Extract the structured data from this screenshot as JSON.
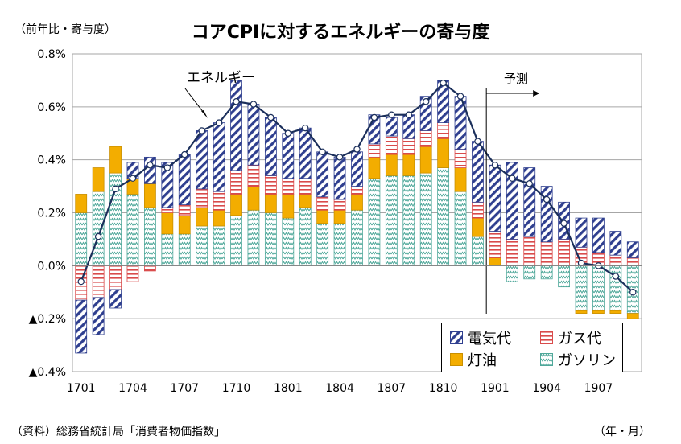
{
  "title": "コアCPIに対するエネルギーの寄与度",
  "unit_label": "（前年比・寄与度）",
  "source": "（資料）総務省統計局「消費者物価指数」",
  "x_unit": "（年・月）",
  "annotations": {
    "energy": "エネルギー",
    "forecast": "予測"
  },
  "legend": [
    {
      "key": "electricity",
      "label": "電気代"
    },
    {
      "key": "gas",
      "label": "ガス代"
    },
    {
      "key": "kerosene",
      "label": "灯油"
    },
    {
      "key": "gasoline",
      "label": "ガソリン"
    }
  ],
  "colors": {
    "electricity": "#2f3f8f",
    "gas": "#d94b4b",
    "kerosene": "#f3ad00",
    "gasoline": "#4fa89a",
    "line": "#1b2f5b",
    "grid": "#a6a6a6"
  },
  "chart_data": {
    "type": "bar",
    "stacked": true,
    "title": "コアCPIに対するエネルギーの寄与度",
    "ylabel": "（前年比・寄与度）",
    "xlabel": "（年・月）",
    "ylim": [
      -0.4,
      0.8
    ],
    "yticks": [
      {
        "value": -0.4,
        "label": "▲0.4%"
      },
      {
        "value": -0.2,
        "label": "▲0.2%"
      },
      {
        "value": 0.0,
        "label": "0.0%"
      },
      {
        "value": 0.2,
        "label": "0.2%"
      },
      {
        "value": 0.4,
        "label": "0.4%"
      },
      {
        "value": 0.6,
        "label": "0.6%"
      },
      {
        "value": 0.8,
        "label": "0.8%"
      }
    ],
    "xtick_labels": [
      "1701",
      "1704",
      "1707",
      "1710",
      "1801",
      "1804",
      "1807",
      "1810",
      "1901",
      "1904",
      "1907"
    ],
    "categories": [
      "1701",
      "1702",
      "1703",
      "1704",
      "1705",
      "1706",
      "1707",
      "1708",
      "1709",
      "1710",
      "1711",
      "1712",
      "1801",
      "1802",
      "1803",
      "1804",
      "1805",
      "1806",
      "1807",
      "1808",
      "1809",
      "1810",
      "1811",
      "1812",
      "1901",
      "1902",
      "1903",
      "1904",
      "1905",
      "1906",
      "1907",
      "1908",
      "1909"
    ],
    "forecast_start": "1812",
    "grid": true,
    "legend_position": "bottom-right",
    "series": [
      {
        "key": "gasoline",
        "name": "ガソリン",
        "values": [
          0.2,
          0.28,
          0.35,
          0.27,
          0.22,
          0.12,
          0.12,
          0.15,
          0.15,
          0.19,
          0.21,
          0.2,
          0.18,
          0.22,
          0.16,
          0.16,
          0.21,
          0.33,
          0.34,
          0.34,
          0.35,
          0.37,
          0.28,
          0.11,
          0.0,
          -0.06,
          -0.05,
          -0.05,
          -0.08,
          -0.17,
          -0.17,
          -0.17,
          -0.18
        ]
      },
      {
        "key": "kerosene",
        "name": "灯油",
        "values": [
          0.07,
          0.09,
          0.1,
          0.06,
          0.09,
          0.08,
          0.07,
          0.07,
          0.06,
          0.08,
          0.09,
          0.07,
          0.09,
          0.05,
          0.05,
          0.05,
          0.06,
          0.08,
          0.08,
          0.08,
          0.1,
          0.11,
          0.09,
          0.07,
          0.03,
          0.0,
          0.0,
          0.0,
          0.0,
          -0.01,
          -0.01,
          -0.01,
          -0.02
        ]
      },
      {
        "key": "gas",
        "name": "ガス代",
        "values": [
          -0.13,
          -0.12,
          -0.09,
          -0.06,
          -0.02,
          0.02,
          0.04,
          0.07,
          0.07,
          0.09,
          0.08,
          0.07,
          0.06,
          0.06,
          0.05,
          0.04,
          0.03,
          0.05,
          0.07,
          0.06,
          0.06,
          0.06,
          0.07,
          0.06,
          0.1,
          0.1,
          0.11,
          0.09,
          0.1,
          0.07,
          0.05,
          0.04,
          0.03
        ]
      },
      {
        "key": "electricity",
        "name": "電気代",
        "values": [
          -0.2,
          -0.14,
          -0.07,
          0.06,
          0.1,
          0.17,
          0.19,
          0.22,
          0.26,
          0.34,
          0.23,
          0.22,
          0.17,
          0.19,
          0.17,
          0.16,
          0.13,
          0.11,
          0.07,
          0.09,
          0.13,
          0.16,
          0.2,
          0.23,
          0.25,
          0.29,
          0.26,
          0.21,
          0.14,
          0.11,
          0.13,
          0.09,
          0.06
        ]
      },
      {
        "key": "energy",
        "name": "エネルギー",
        "type": "line",
        "values": [
          -0.06,
          0.11,
          0.29,
          0.33,
          0.38,
          0.37,
          0.42,
          0.51,
          0.54,
          0.62,
          0.61,
          0.56,
          0.5,
          0.52,
          0.43,
          0.41,
          0.44,
          0.56,
          0.57,
          0.57,
          0.62,
          0.69,
          0.64,
          0.47,
          0.38,
          0.33,
          0.31,
          0.25,
          0.16,
          0.01,
          0.0,
          -0.04,
          -0.1
        ]
      }
    ]
  }
}
